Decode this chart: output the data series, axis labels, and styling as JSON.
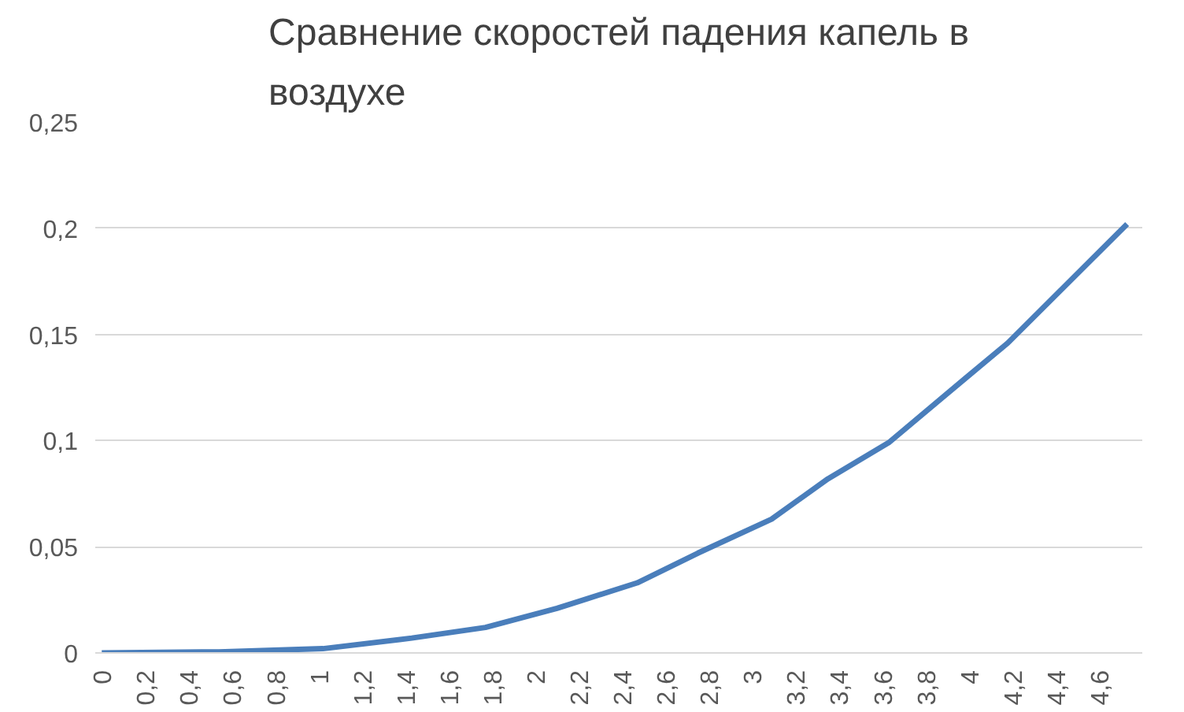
{
  "chart_data": {
    "type": "line",
    "title": "Сравнение скоростей падения капель в\nвоздухе",
    "x": [
      0,
      0.54,
      1.02,
      1.43,
      1.77,
      2.1,
      2.47,
      2.75,
      3.09,
      3.35,
      3.63,
      3.98,
      4.18,
      4.73
    ],
    "series": [
      {
        "color": "#4a7ebb",
        "values": [
          0,
          0.0005,
          0.002,
          0.007,
          0.012,
          0.021,
          0.033,
          0.047,
          0.063,
          0.082,
          0.099,
          0.129,
          0.146,
          0.202
        ]
      }
    ],
    "xlim": [
      -0.03,
      4.8
    ],
    "xticks": [
      0,
      {
        "value": 0.2,
        "label": "0,2"
      },
      {
        "value": 0.4,
        "label": "0,4"
      },
      {
        "value": 0.6,
        "label": "0,6"
      },
      {
        "value": 0.8,
        "label": "0,8"
      },
      1,
      {
        "value": 1.2,
        "label": "1,2"
      },
      {
        "value": 1.4,
        "label": "1,4"
      },
      {
        "value": 1.6,
        "label": "1,6"
      },
      {
        "value": 1.8,
        "label": "1,8"
      },
      2,
      {
        "value": 2.2,
        "label": "2,2"
      },
      {
        "value": 2.4,
        "label": "2,4"
      },
      {
        "value": 2.6,
        "label": "2,6"
      },
      {
        "value": 2.8,
        "label": "2,8"
      },
      3,
      {
        "value": 3.2,
        "label": "3,2"
      },
      {
        "value": 3.4,
        "label": "3,4"
      },
      {
        "value": 3.6,
        "label": "3,6"
      },
      {
        "value": 3.8,
        "label": "3,8"
      },
      4,
      {
        "value": 4.2,
        "label": "4,2"
      },
      {
        "value": 4.4,
        "label": "4,4"
      },
      {
        "value": 4.6,
        "label": "4,6"
      }
    ],
    "ylim": [
      0,
      0.25
    ],
    "yticks": [
      0,
      {
        "value": 0.05,
        "label": "0,05"
      },
      {
        "value": 0.1,
        "label": "0,1"
      },
      {
        "value": 0.15,
        "label": "0,15"
      },
      {
        "value": 0.2,
        "label": "0,2"
      },
      {
        "value": 0.25,
        "label": "0,25"
      }
    ],
    "grid": "y",
    "line_style": "solid",
    "marker": "none"
  }
}
